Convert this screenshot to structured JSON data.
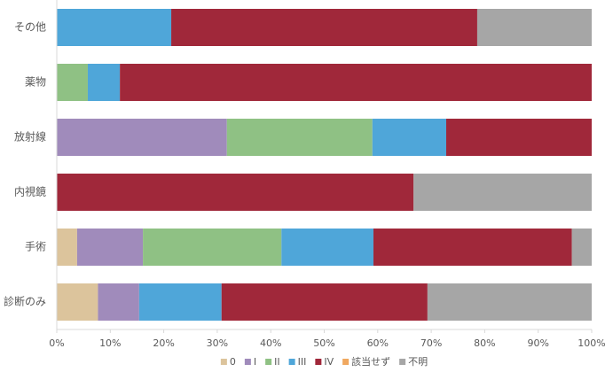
{
  "chart_data": {
    "type": "stacked-bar-horizontal",
    "categories": [
      "その他",
      "薬物",
      "放射線",
      "内視鏡",
      "手術",
      "診断のみ"
    ],
    "series": [
      {
        "name": "0",
        "color": "#dcc49c",
        "values": [
          0,
          0,
          0,
          0,
          3.8,
          7.7
        ]
      },
      {
        "name": "I",
        "color": "#a08bbb",
        "values": [
          0,
          0,
          31.8,
          0,
          12.3,
          7.7
        ]
      },
      {
        "name": "II",
        "color": "#8fc184",
        "values": [
          0,
          5.8,
          27.2,
          0,
          25.9,
          0
        ]
      },
      {
        "name": "III",
        "color": "#4fa6d9",
        "values": [
          21.4,
          6,
          13.8,
          0,
          17.2,
          15.4
        ]
      },
      {
        "name": "IV",
        "color": "#a0283a",
        "values": [
          57.2,
          88.2,
          27.2,
          66.7,
          37.1,
          38.5
        ]
      },
      {
        "name": "該当せず",
        "color": "#f0a860",
        "values": [
          0,
          0,
          0,
          0,
          0,
          0
        ]
      },
      {
        "name": "不明",
        "color": "#a6a6a6",
        "values": [
          21.4,
          0,
          0,
          33.3,
          3.7,
          30.7
        ]
      }
    ],
    "xlim": [
      0,
      100
    ],
    "xticks": [
      {
        "value": 0,
        "label": "0%"
      },
      {
        "value": 10,
        "label": "10%"
      },
      {
        "value": 20,
        "label": "20%"
      },
      {
        "value": 30,
        "label": "30%"
      },
      {
        "value": 40,
        "label": "40%"
      },
      {
        "value": 50,
        "label": "50%"
      },
      {
        "value": 60,
        "label": "60%"
      },
      {
        "value": 70,
        "label": "70%"
      },
      {
        "value": 80,
        "label": "80%"
      },
      {
        "value": 90,
        "label": "90%"
      },
      {
        "value": 100,
        "label": "100%"
      }
    ],
    "legend": "bottom"
  }
}
